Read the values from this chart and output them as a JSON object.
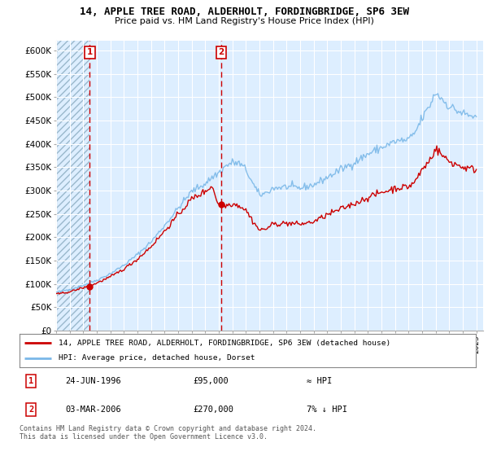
{
  "title1": "14, APPLE TREE ROAD, ALDERHOLT, FORDINGBRIDGE, SP6 3EW",
  "title2": "Price paid vs. HM Land Registry's House Price Index (HPI)",
  "ylabel_ticks": [
    "£0",
    "£50K",
    "£100K",
    "£150K",
    "£200K",
    "£250K",
    "£300K",
    "£350K",
    "£400K",
    "£450K",
    "£500K",
    "£550K",
    "£600K"
  ],
  "ylim": [
    0,
    620000
  ],
  "xlim_start": 1994.0,
  "xlim_end": 2025.5,
  "purchases": [
    {
      "year": 1996.48,
      "price": 95000,
      "label": "1"
    },
    {
      "year": 2006.17,
      "price": 270000,
      "label": "2"
    }
  ],
  "legend_line1": "14, APPLE TREE ROAD, ALDERHOLT, FORDINGBRIDGE, SP6 3EW (detached house)",
  "legend_line2": "HPI: Average price, detached house, Dorset",
  "table_rows": [
    {
      "num": "1",
      "date": "24-JUN-1996",
      "price": "£95,000",
      "hpi": "≈ HPI"
    },
    {
      "num": "2",
      "date": "03-MAR-2006",
      "price": "£270,000",
      "hpi": "7% ↓ HPI"
    }
  ],
  "footnote": "Contains HM Land Registry data © Crown copyright and database right 2024.\nThis data is licensed under the Open Government Licence v3.0.",
  "hpi_color": "#7ab8e8",
  "price_color": "#cc0000",
  "vline_color": "#cc0000",
  "plot_bg_color": "#ddeeff",
  "hatch_color": "#bbccdd"
}
